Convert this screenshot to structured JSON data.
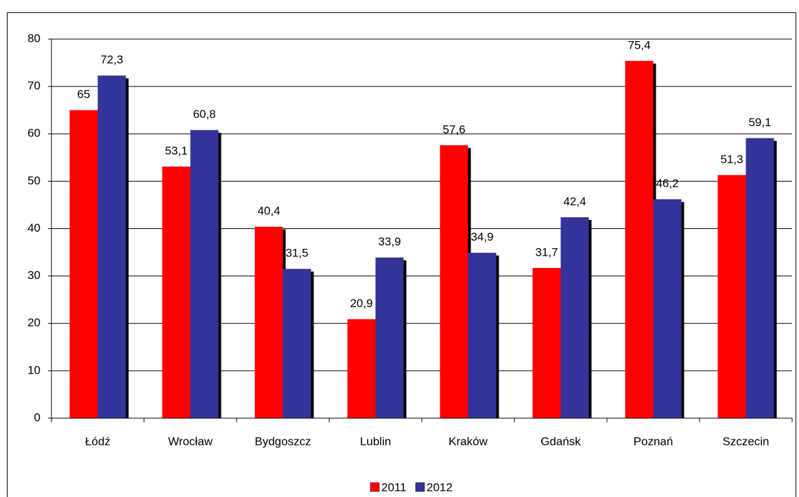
{
  "chart_data": {
    "type": "bar",
    "categories": [
      "Łódź",
      "Wrocław",
      "Bydgoszcz",
      "Lublin",
      "Kraków",
      "Gdańsk",
      "Poznań",
      "Szczecin"
    ],
    "series": [
      {
        "name": "2011",
        "color": "#ff0000",
        "values": [
          65,
          53.1,
          40.4,
          20.9,
          57.6,
          31.7,
          75.4,
          51.3
        ],
        "value_labels": [
          "65",
          "53,1",
          "40,4",
          "20,9",
          "57,6",
          "31,7",
          "75,4",
          "51,3"
        ]
      },
      {
        "name": "2012",
        "color": "#333399",
        "values": [
          72.3,
          60.8,
          31.5,
          33.9,
          34.9,
          42.4,
          46.2,
          59.1
        ],
        "value_labels": [
          "72,3",
          "60,8",
          "31,5",
          "33,9",
          "34,9",
          "42,4",
          "46,2",
          "59,1"
        ]
      }
    ],
    "ylim": [
      0,
      80
    ],
    "yticks": [
      0,
      10,
      20,
      30,
      40,
      50,
      60,
      70,
      80
    ],
    "grid": true,
    "legend": "bottom"
  }
}
